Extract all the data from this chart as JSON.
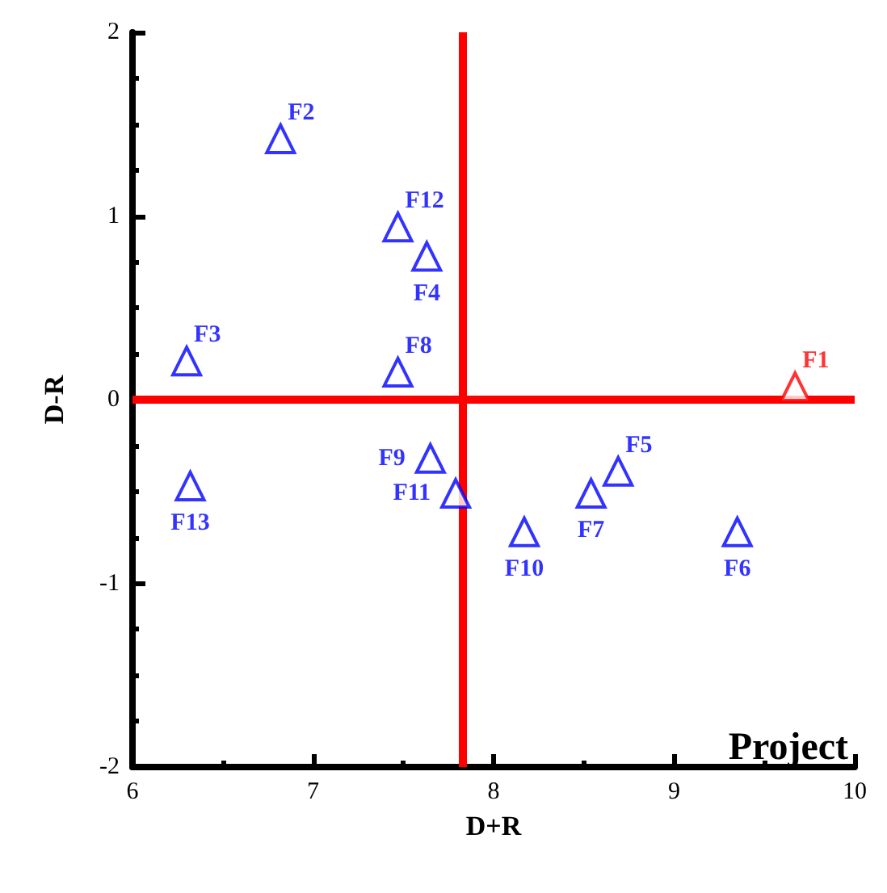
{
  "chart_data": {
    "type": "scatter",
    "xlabel": "D+R",
    "ylabel": "D-R",
    "xlim": [
      6,
      10
    ],
    "ylim": [
      -2,
      2
    ],
    "xticks": [
      6,
      7,
      8,
      9,
      10
    ],
    "yticks": [
      -2,
      -1,
      0,
      1,
      2
    ],
    "grid": false,
    "legend": false,
    "marker": "triangle",
    "annotations": [
      "Project"
    ],
    "ref_lines": [
      {
        "axis": "x",
        "value": 7.83,
        "color": "#ff0000"
      },
      {
        "axis": "y",
        "value": 0,
        "color": "#ff0000"
      }
    ],
    "series": [
      {
        "name": "F1",
        "color": "#ff0000",
        "x": [
          9.67
        ],
        "values": [
          0.07
        ]
      },
      {
        "name": "F2",
        "color": "#0000ff",
        "x": [
          6.82
        ],
        "values": [
          1.42
        ]
      },
      {
        "name": "F3",
        "color": "#0000ff",
        "x": [
          6.3
        ],
        "values": [
          0.21
        ]
      },
      {
        "name": "F4",
        "color": "#0000ff",
        "x": [
          7.63
        ],
        "values": [
          0.78
        ]
      },
      {
        "name": "F5",
        "color": "#0000ff",
        "x": [
          8.69
        ],
        "values": [
          -0.39
        ]
      },
      {
        "name": "F6",
        "color": "#0000ff",
        "x": [
          9.35
        ],
        "values": [
          -0.72
        ]
      },
      {
        "name": "F7",
        "color": "#0000ff",
        "x": [
          8.54
        ],
        "values": [
          -0.51
        ]
      },
      {
        "name": "F8",
        "color": "#0000ff",
        "x": [
          7.47
        ],
        "values": [
          0.15
        ]
      },
      {
        "name": "F9",
        "color": "#0000ff",
        "x": [
          7.65
        ],
        "values": [
          -0.32
        ]
      },
      {
        "name": "F10",
        "color": "#0000ff",
        "x": [
          8.17
        ],
        "values": [
          -0.72
        ]
      },
      {
        "name": "F11",
        "color": "#0000ff",
        "x": [
          7.79
        ],
        "values": [
          -0.51
        ]
      },
      {
        "name": "F12",
        "color": "#0000ff",
        "x": [
          7.47
        ],
        "values": [
          0.94
        ]
      },
      {
        "name": "F13",
        "color": "#0000ff",
        "x": [
          6.32
        ],
        "values": [
          -0.47
        ]
      }
    ]
  }
}
